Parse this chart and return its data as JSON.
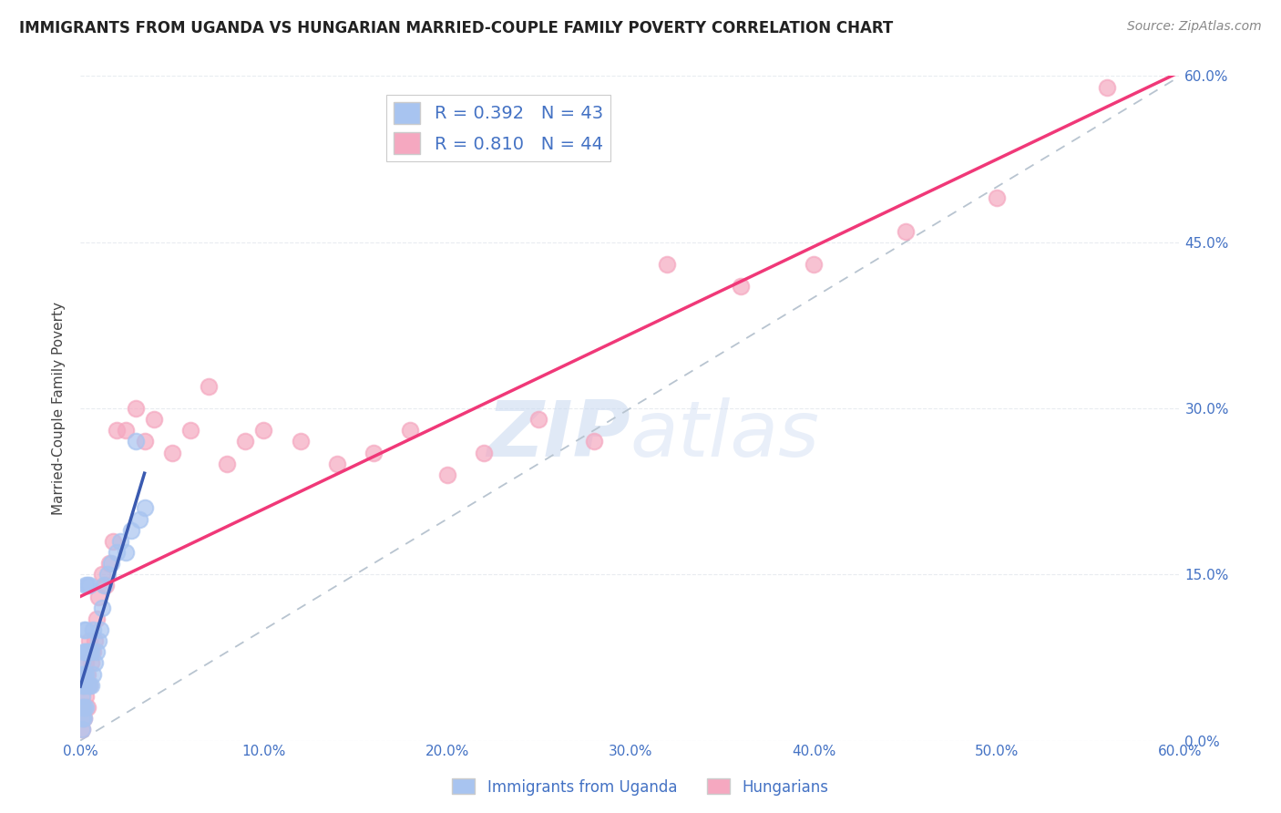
{
  "title": "IMMIGRANTS FROM UGANDA VS HUNGARIAN MARRIED-COUPLE FAMILY POVERTY CORRELATION CHART",
  "source": "Source: ZipAtlas.com",
  "ylabel": "Married-Couple Family Poverty",
  "xlim": [
    0.0,
    0.6
  ],
  "ylim": [
    0.0,
    0.6
  ],
  "xticks": [
    0.0,
    0.1,
    0.2,
    0.3,
    0.4,
    0.5,
    0.6
  ],
  "yticks": [
    0.0,
    0.15,
    0.3,
    0.45,
    0.6
  ],
  "xticklabels": [
    "0.0%",
    "10.0%",
    "20.0%",
    "30.0%",
    "40.0%",
    "50.0%",
    "60.0%"
  ],
  "yticklabels_right": [
    "0.0%",
    "15.0%",
    "30.0%",
    "45.0%",
    "60.0%"
  ],
  "uganda_R": 0.392,
  "uganda_N": 43,
  "hungarian_R": 0.81,
  "hungarian_N": 44,
  "uganda_color": "#a8c4f0",
  "hungarian_color": "#f5a8c0",
  "uganda_line_color": "#3a5ab0",
  "hungarian_line_color": "#f03878",
  "reference_line_color": "#b8c4d0",
  "grid_color": "#e8ecf0",
  "title_color": "#222222",
  "axis_label_color": "#444444",
  "tick_label_color": "#4472c4",
  "watermark_color": "#d0dff5",
  "watermark_text": "ZIPAtlas",
  "legend_label1": "Immigrants from Uganda",
  "legend_label2": "Hungarians",
  "uganda_x": [
    0.001,
    0.001,
    0.001,
    0.001,
    0.001,
    0.001,
    0.001,
    0.002,
    0.002,
    0.002,
    0.002,
    0.002,
    0.002,
    0.003,
    0.003,
    0.003,
    0.003,
    0.003,
    0.004,
    0.004,
    0.004,
    0.005,
    0.005,
    0.005,
    0.006,
    0.006,
    0.007,
    0.007,
    0.008,
    0.009,
    0.01,
    0.011,
    0.012,
    0.013,
    0.015,
    0.017,
    0.02,
    0.022,
    0.025,
    0.028,
    0.03,
    0.032,
    0.035
  ],
  "uganda_y": [
    0.01,
    0.02,
    0.03,
    0.04,
    0.05,
    0.06,
    0.07,
    0.02,
    0.03,
    0.05,
    0.06,
    0.08,
    0.1,
    0.03,
    0.06,
    0.08,
    0.1,
    0.14,
    0.05,
    0.08,
    0.14,
    0.05,
    0.08,
    0.14,
    0.05,
    0.08,
    0.06,
    0.1,
    0.07,
    0.08,
    0.09,
    0.1,
    0.12,
    0.14,
    0.15,
    0.16,
    0.17,
    0.18,
    0.17,
    0.19,
    0.27,
    0.2,
    0.21
  ],
  "uganda_line_x": [
    0.0,
    0.035
  ],
  "uganda_line_slope": 4.5,
  "uganda_line_intercept": 0.03,
  "hungarian_x": [
    0.001,
    0.001,
    0.002,
    0.002,
    0.003,
    0.003,
    0.004,
    0.004,
    0.005,
    0.005,
    0.006,
    0.007,
    0.008,
    0.009,
    0.01,
    0.012,
    0.014,
    0.016,
    0.018,
    0.02,
    0.025,
    0.03,
    0.035,
    0.04,
    0.05,
    0.06,
    0.07,
    0.08,
    0.09,
    0.1,
    0.12,
    0.14,
    0.16,
    0.18,
    0.2,
    0.22,
    0.25,
    0.28,
    0.32,
    0.36,
    0.4,
    0.45,
    0.5,
    0.56
  ],
  "hungarian_y": [
    0.01,
    0.03,
    0.02,
    0.05,
    0.04,
    0.07,
    0.03,
    0.06,
    0.05,
    0.09,
    0.07,
    0.08,
    0.09,
    0.11,
    0.13,
    0.15,
    0.14,
    0.16,
    0.18,
    0.28,
    0.28,
    0.3,
    0.27,
    0.29,
    0.26,
    0.28,
    0.32,
    0.25,
    0.27,
    0.28,
    0.27,
    0.25,
    0.26,
    0.28,
    0.24,
    0.26,
    0.29,
    0.27,
    0.43,
    0.41,
    0.43,
    0.46,
    0.49,
    0.59
  ]
}
